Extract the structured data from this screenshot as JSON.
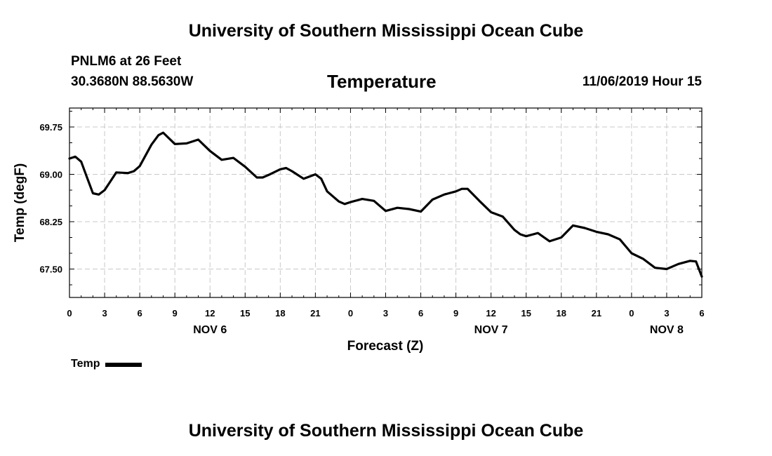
{
  "header": {
    "top_title": "University of Southern Mississippi Ocean Cube",
    "station": "PNLM6 at 26 Feet",
    "coords": "30.3680N 88.5630W",
    "plot_title": "Temperature",
    "datetime": "11/06/2019 Hour 15"
  },
  "footer": {
    "bottom_title": "University of Southern Mississippi Ocean Cube"
  },
  "legend": {
    "label": "Temp",
    "color": "#000000"
  },
  "chart_data": {
    "type": "line",
    "title": "Temperature",
    "xlabel": "Forecast (Z)",
    "ylabel": "Temp (degF)",
    "xlim": [
      0,
      54
    ],
    "ylim": [
      67.05,
      70.05
    ],
    "grid": true,
    "x_ticks": [
      0,
      3,
      6,
      9,
      12,
      15,
      18,
      21,
      24,
      27,
      30,
      33,
      36,
      39,
      42,
      45,
      48,
      51,
      54
    ],
    "x_tick_labels": [
      "0",
      "3",
      "6",
      "9",
      "12",
      "15",
      "18",
      "21",
      "0",
      "3",
      "6",
      "9",
      "12",
      "15",
      "18",
      "21",
      "0",
      "3",
      "6"
    ],
    "y_ticks": [
      67.5,
      68.25,
      69.0,
      69.75
    ],
    "y_tick_labels": [
      "67.50",
      "68.25",
      "69.00",
      "69.75"
    ],
    "day_labels": [
      {
        "x": 12,
        "label": "NOV 6"
      },
      {
        "x": 36,
        "label": "NOV 7"
      },
      {
        "x": 51,
        "label": "NOV 8"
      }
    ],
    "series": [
      {
        "name": "Temp",
        "color": "#000000",
        "x": [
          0,
          0.5,
          1,
          1.5,
          2,
          2.5,
          3,
          4,
          5,
          5.5,
          6,
          7,
          7.6,
          8,
          9,
          10,
          11,
          12,
          13,
          14,
          15,
          16,
          16.5,
          17,
          18,
          18.5,
          19,
          20,
          21,
          21.5,
          22,
          23,
          23.5,
          24,
          25,
          26,
          27,
          28,
          29,
          30,
          31,
          32,
          33,
          33.5,
          34,
          35,
          36,
          37,
          38,
          38.5,
          39,
          40,
          41,
          42,
          43,
          44,
          45,
          46,
          47,
          48,
          49,
          50,
          51,
          52,
          53,
          53.5,
          54
        ],
        "values": [
          69.25,
          69.28,
          69.2,
          68.95,
          68.7,
          68.68,
          68.75,
          69.03,
          69.02,
          69.05,
          69.13,
          69.47,
          69.62,
          69.66,
          69.48,
          69.49,
          69.55,
          69.37,
          69.23,
          69.26,
          69.12,
          68.95,
          68.95,
          68.99,
          69.08,
          69.1,
          69.05,
          68.93,
          69.0,
          68.93,
          68.73,
          68.57,
          68.53,
          68.56,
          68.61,
          68.58,
          68.42,
          68.47,
          68.45,
          68.41,
          68.6,
          68.68,
          68.73,
          68.77,
          68.77,
          68.58,
          68.4,
          68.33,
          68.12,
          68.05,
          68.02,
          68.07,
          67.94,
          68.0,
          68.19,
          68.15,
          68.09,
          68.05,
          67.97,
          67.75,
          67.66,
          67.52,
          67.5,
          67.58,
          67.63,
          67.62,
          67.38
        ]
      }
    ]
  }
}
